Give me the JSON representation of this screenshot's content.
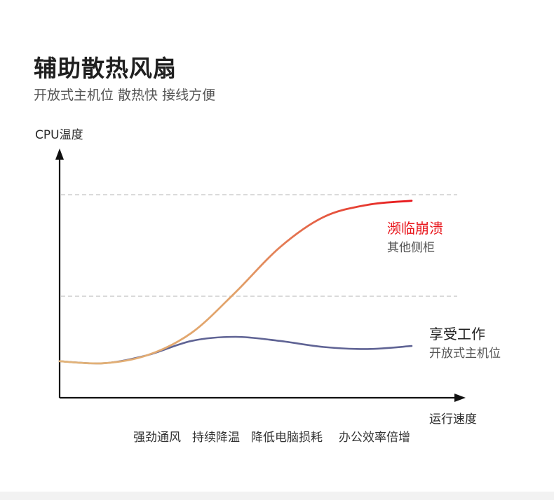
{
  "header": {
    "title": "辅助散热风扇",
    "subtitle": "开放式主机位 散热快 接线方便"
  },
  "colors": {
    "axis": "#111111",
    "grid": "#c4c4c4",
    "hot_start": "#e2b47a",
    "hot_end": "#e8151b",
    "cool": "#5f6394",
    "hot_label": "#e8151b",
    "text": "#2a2a2a",
    "subtext": "#555555"
  },
  "chart_data": {
    "type": "line",
    "title": "",
    "xlabel": "运行速度",
    "ylabel": "CPU温度",
    "xlim": [
      0,
      100
    ],
    "ylim": [
      0,
      100
    ],
    "grid": "dashed horizontal",
    "x_tick_labels": [
      "强劲通风",
      "持续降温",
      "降低电脑损耗",
      "办公效率倍增"
    ],
    "gridlines_y": [
      50,
      100
    ],
    "series": [
      {
        "name": "濒临崩溃",
        "sublabel": "其他侧柜",
        "color_start": "#e2b47a",
        "color_end": "#e8151b",
        "points": [
          [
            0,
            18
          ],
          [
            10,
            17
          ],
          [
            20,
            21
          ],
          [
            30,
            32
          ],
          [
            40,
            52
          ],
          [
            50,
            74
          ],
          [
            60,
            89
          ],
          [
            70,
            95
          ],
          [
            80,
            97
          ]
        ]
      },
      {
        "name": "享受工作",
        "sublabel": "开放式主机位",
        "color": "#5f6394",
        "points": [
          [
            0,
            18
          ],
          [
            10,
            17
          ],
          [
            20,
            21
          ],
          [
            30,
            28
          ],
          [
            40,
            30
          ],
          [
            50,
            28
          ],
          [
            60,
            25
          ],
          [
            70,
            24
          ],
          [
            80,
            25.5
          ]
        ]
      }
    ]
  }
}
